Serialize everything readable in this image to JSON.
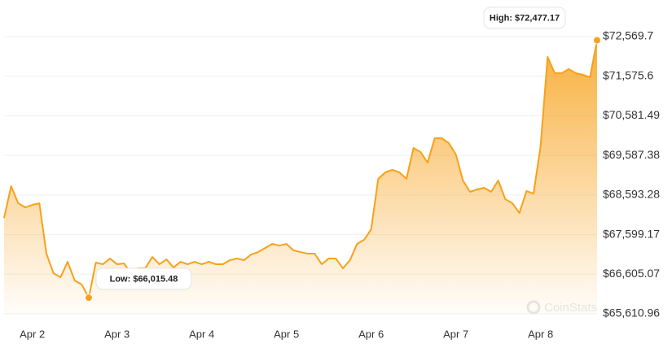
{
  "chart_data": {
    "type": "area",
    "color": "#f7a11a",
    "grid": true,
    "ylim": [
      65610.96,
      72569.7
    ],
    "yticks": [
      {
        "value": 65610.96,
        "label": "$65,610.96"
      },
      {
        "value": 66605.07,
        "label": "$66,605.07"
      },
      {
        "value": 67599.17,
        "label": "$67,599.17"
      },
      {
        "value": 68593.28,
        "label": "$68,593.28"
      },
      {
        "value": 69587.38,
        "label": "$69,587.38"
      },
      {
        "value": 70581.49,
        "label": "$70,581.49"
      },
      {
        "value": 71575.6,
        "label": "$71,575.6"
      },
      {
        "value": 72569.7,
        "label": "$72,569.7"
      }
    ],
    "categories": [
      null,
      null,
      null,
      null,
      "Apr 2",
      null,
      null,
      null,
      null,
      null,
      null,
      null,
      null,
      null,
      null,
      null,
      "Apr 3",
      null,
      null,
      null,
      null,
      null,
      null,
      null,
      null,
      null,
      null,
      null,
      "Apr 4",
      null,
      null,
      null,
      null,
      null,
      null,
      null,
      null,
      null,
      null,
      null,
      "Apr 5",
      null,
      null,
      null,
      null,
      null,
      null,
      null,
      null,
      null,
      null,
      null,
      "Apr 6",
      null,
      null,
      null,
      null,
      null,
      null,
      null,
      null,
      null,
      null,
      null,
      "Apr 7",
      null,
      null,
      null,
      null,
      null,
      null,
      null,
      null,
      null,
      null,
      null,
      "Apr 8",
      null,
      null,
      null,
      null,
      null,
      null,
      null,
      null
    ],
    "values": [
      68018,
      68814,
      68386,
      68284,
      68345,
      68386,
      67120,
      66630,
      66528,
      66916,
      66447,
      66345,
      66015.48,
      66896,
      66855,
      66998,
      66855,
      66875,
      66610,
      66753,
      66753,
      67039,
      66855,
      66977,
      66773,
      66916,
      66855,
      66916,
      66855,
      66916,
      66855,
      66855,
      66957,
      66998,
      66957,
      67100,
      67161,
      67263,
      67365,
      67324,
      67365,
      67202,
      67161,
      67120,
      67120,
      66855,
      66998,
      66998,
      66753,
      66957,
      67365,
      67467,
      67733,
      68998,
      69162,
      69223,
      69162,
      68998,
      69774,
      69672,
      69406,
      70019,
      70019,
      69896,
      69611,
      68957,
      68672,
      68733,
      68774,
      68672,
      68957,
      68488,
      68386,
      68141,
      68692,
      68631,
      69815,
      72060,
      71652,
      71652,
      71754,
      71652,
      71611,
      71549,
      72477.17
    ],
    "annotations": {
      "high": "High: $72,477.17",
      "low": "Low: $66,015.48"
    },
    "watermark": "CoinStats"
  }
}
